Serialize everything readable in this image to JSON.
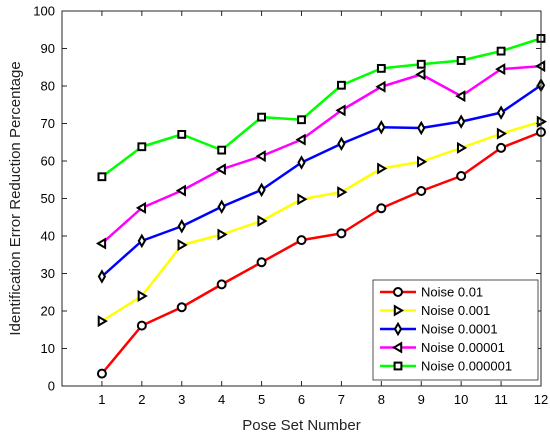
{
  "chart_data": {
    "type": "line",
    "xlabel": "Pose Set Number",
    "ylabel": "Identification Error Reduction Percentage",
    "xlim": [
      0,
      12
    ],
    "ylim": [
      0,
      100
    ],
    "x": [
      1,
      2,
      3,
      4,
      5,
      6,
      7,
      8,
      9,
      10,
      11,
      12
    ],
    "xticks": [
      "1",
      "2",
      "3",
      "4",
      "5",
      "6",
      "7",
      "8",
      "9",
      "10",
      "11",
      "12"
    ],
    "yticks": [
      "0",
      "10",
      "20",
      "30",
      "40",
      "50",
      "60",
      "70",
      "80",
      "90",
      "100"
    ],
    "grid": false,
    "legend_position": "bottom-right",
    "series": [
      {
        "name": "Noise 0.01",
        "color": "#ff0000",
        "marker": "circle",
        "values": [
          3.3,
          16.1,
          21.0,
          27.1,
          33.0,
          38.9,
          40.7,
          47.4,
          52.0,
          56.0,
          63.5,
          67.7
        ]
      },
      {
        "name": "Noise 0.001",
        "color": "#ffff00",
        "marker": "triangle-right",
        "values": [
          17.3,
          24.0,
          37.6,
          40.4,
          44.0,
          49.8,
          51.7,
          58.0,
          59.8,
          63.5,
          67.3,
          70.5
        ]
      },
      {
        "name": "Noise 0.0001",
        "color": "#0000ff",
        "marker": "diamond",
        "values": [
          29.2,
          38.7,
          42.6,
          47.8,
          52.3,
          59.6,
          64.6,
          69.0,
          68.8,
          70.5,
          72.9,
          80.2
        ]
      },
      {
        "name": "Noise 0.00001",
        "color": "#ff00ff",
        "marker": "triangle-left",
        "values": [
          38.0,
          47.5,
          52.1,
          57.8,
          61.3,
          65.7,
          73.5,
          79.8,
          83.1,
          77.3,
          84.5,
          85.3
        ]
      },
      {
        "name": "Noise 0.000001",
        "color": "#00ff00",
        "marker": "square",
        "values": [
          55.8,
          63.8,
          67.1,
          62.9,
          71.7,
          71.0,
          80.2,
          84.7,
          85.8,
          86.8,
          89.3,
          92.7
        ]
      }
    ]
  }
}
